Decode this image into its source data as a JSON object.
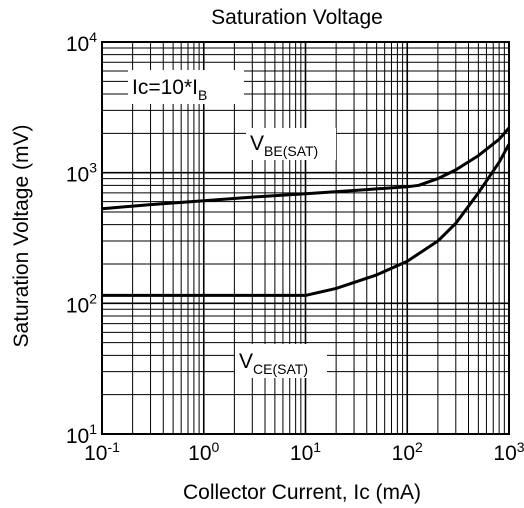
{
  "chart_data": {
    "type": "line",
    "title": "Saturation Voltage",
    "xlabel": "Collector Current, Ic (mA)",
    "ylabel": "Saturation Voltage (mV)",
    "x_scale": "log",
    "y_scale": "log",
    "xlim": [
      0.1,
      1000
    ],
    "ylim": [
      10,
      10000
    ],
    "grid": true,
    "x_ticks": [
      {
        "base": "10",
        "exp": "-1",
        "value": 0.1
      },
      {
        "base": "10",
        "exp": "0",
        "value": 1
      },
      {
        "base": "10",
        "exp": "1",
        "value": 10
      },
      {
        "base": "10",
        "exp": "2",
        "value": 100
      },
      {
        "base": "10",
        "exp": "3",
        "value": 1000
      }
    ],
    "y_ticks": [
      {
        "base": "10",
        "exp": "1",
        "value": 10
      },
      {
        "base": "10",
        "exp": "2",
        "value": 100
      },
      {
        "base": "10",
        "exp": "3",
        "value": 1000
      },
      {
        "base": "10",
        "exp": "4",
        "value": 10000
      }
    ],
    "annotation": {
      "main": "Ic=10*I",
      "sub": "B"
    },
    "series": [
      {
        "label_main": "V",
        "label_sub": "BE(SAT)",
        "x": [
          0.1,
          0.3,
          1,
          3,
          10,
          30,
          100,
          130,
          200,
          300,
          500,
          800,
          1000
        ],
        "y": [
          530,
          570,
          610,
          650,
          690,
          730,
          780,
          800,
          900,
          1050,
          1350,
          1800,
          2200
        ]
      },
      {
        "label_main": "V",
        "label_sub": "CE(SAT)",
        "x": [
          0.1,
          1,
          10,
          20,
          50,
          100,
          200,
          300,
          500,
          800,
          1000
        ],
        "y": [
          115,
          115,
          115,
          130,
          165,
          210,
          300,
          410,
          700,
          1200,
          1650
        ]
      }
    ]
  }
}
